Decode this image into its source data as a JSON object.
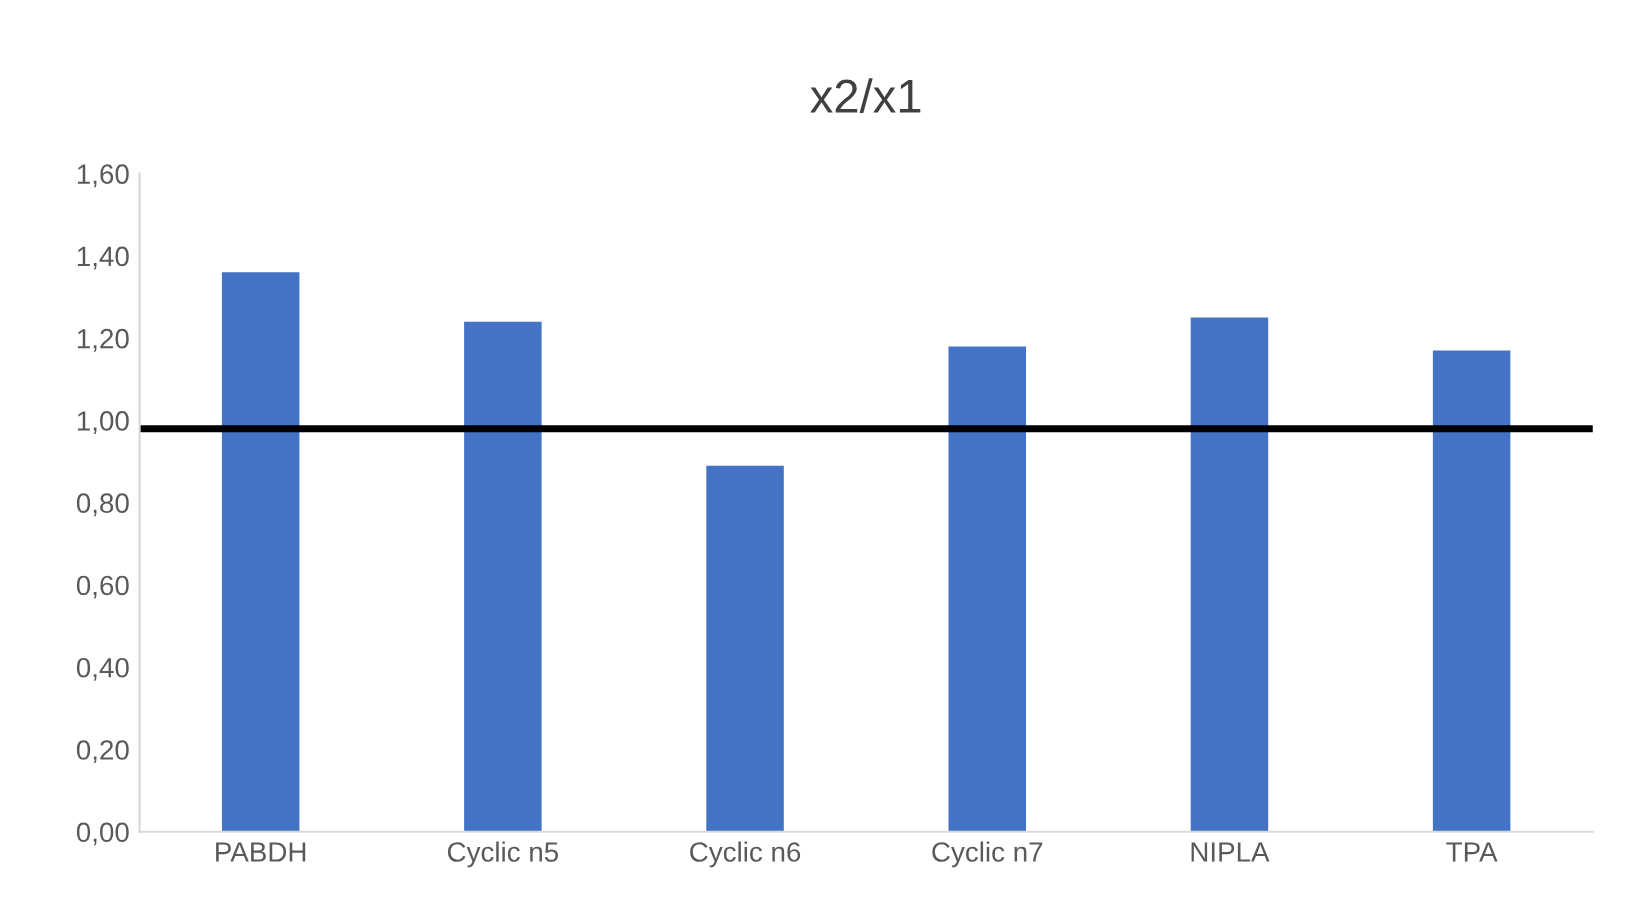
{
  "chart_data": {
    "type": "bar",
    "title": "x2/x1",
    "categories": [
      "PABDH",
      "Cyclic n5",
      "Cyclic n6",
      "Cyclic n7",
      "NIPLA",
      "TPA"
    ],
    "values": [
      1.36,
      1.24,
      0.89,
      1.18,
      1.25,
      1.17
    ],
    "color": "#4472c4",
    "ylim": [
      0,
      1.6
    ],
    "yticks": [
      {
        "value": 0,
        "label": "0,00"
      },
      {
        "value": 0.2,
        "label": "0,20"
      },
      {
        "value": 0.4,
        "label": "0,40"
      },
      {
        "value": 0.6,
        "label": "0,60"
      },
      {
        "value": 0.8,
        "label": "0,80"
      },
      {
        "value": 1.0,
        "label": "1,00"
      },
      {
        "value": 1.2,
        "label": "1,20"
      },
      {
        "value": 1.4,
        "label": "1,40"
      },
      {
        "value": 1.6,
        "label": "1,60"
      }
    ],
    "ref_lines": [
      {
        "axis": "y",
        "value": 0.98,
        "color": "#000000"
      }
    ],
    "grid": false,
    "legend": false
  }
}
